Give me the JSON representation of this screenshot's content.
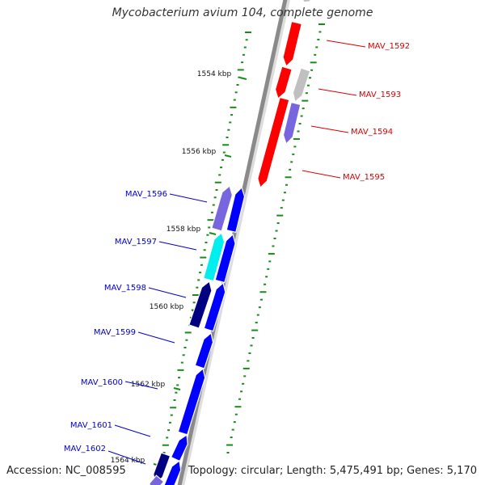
{
  "title": "Mycobacterium avium 104, complete genome",
  "accession": "Accession: NC_008595",
  "summary": "Topology: circular; Length: 5,475,491 bp; Genes: 5,170",
  "colors": {
    "backbone": "#8a8a8a",
    "tick": "#1a8a1a",
    "kbp_label": "#111111",
    "reverse_label": "#dd0000",
    "forward_label": "#0000cc"
  },
  "scale": {
    "unit": "kbp",
    "labels": [
      {
        "kbp": 1554,
        "text": "1554 kbp"
      },
      {
        "kbp": 1556,
        "text": "1556 kbp"
      },
      {
        "kbp": 1558,
        "text": "1558 kbp"
      },
      {
        "kbp": 1560,
        "text": "1560 kbp"
      },
      {
        "kbp": 1562,
        "text": "1562 kbp"
      },
      {
        "kbp": 1564,
        "text": "1564 kbp"
      }
    ]
  },
  "genes": [
    {
      "locus": "MAV_1592",
      "strand": "reverse",
      "color": "#ff0000"
    },
    {
      "locus": "MAV_1593",
      "strand": "reverse",
      "color": "#c0c0c0"
    },
    {
      "locus": "MAV_1594",
      "strand": "reverse",
      "color": "#7766dd"
    },
    {
      "locus": "MAV_1595",
      "strand": "reverse",
      "color": "#ff0000"
    },
    {
      "locus": "MAV_1596",
      "strand": "forward",
      "color": "#7766dd"
    },
    {
      "locus": "MAV_1597",
      "strand": "forward",
      "color": "#00eeee"
    },
    {
      "locus": "MAV_1598",
      "strand": "forward",
      "color": "#000080"
    },
    {
      "locus": "MAV_1599",
      "strand": "forward",
      "color": "#0000ff"
    },
    {
      "locus": "MAV_1600",
      "strand": "forward",
      "color": "#0000ff"
    },
    {
      "locus": "MAV_1601",
      "strand": "forward",
      "color": "#0000ff"
    },
    {
      "locus": "MAV_1602",
      "strand": "forward",
      "color": "#0000ff"
    }
  ]
}
